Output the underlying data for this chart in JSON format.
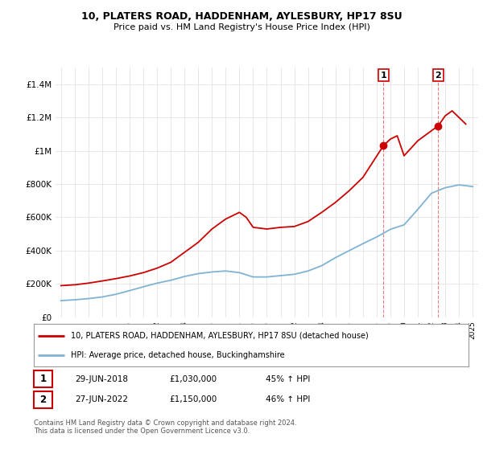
{
  "title1": "10, PLATERS ROAD, HADDENHAM, AYLESBURY, HP17 8SU",
  "title2": "Price paid vs. HM Land Registry's House Price Index (HPI)",
  "ylim": [
    0,
    1500000
  ],
  "yticks": [
    0,
    200000,
    400000,
    600000,
    800000,
    1000000,
    1200000,
    1400000
  ],
  "red_line_color": "#cc0000",
  "blue_line_color": "#7fb3d3",
  "marker1_year": 2018.49,
  "marker1_value": 1030000,
  "marker2_year": 2022.49,
  "marker2_value": 1150000,
  "legend_label1": "10, PLATERS ROAD, HADDENHAM, AYLESBURY, HP17 8SU (detached house)",
  "legend_label2": "HPI: Average price, detached house, Buckinghamshire",
  "table_row1": [
    "1",
    "29-JUN-2018",
    "£1,030,000",
    "45% ↑ HPI"
  ],
  "table_row2": [
    "2",
    "27-JUN-2022",
    "£1,150,000",
    "46% ↑ HPI"
  ],
  "footer": "Contains HM Land Registry data © Crown copyright and database right 2024.\nThis data is licensed under the Open Government Licence v3.0.",
  "red_x": [
    1995,
    1996,
    1997,
    1998,
    1999,
    2000,
    2001,
    2002,
    2003,
    2004,
    2005,
    2006,
    2007,
    2008,
    2008.5,
    2009,
    2010,
    2011,
    2012,
    2013,
    2014,
    2015,
    2016,
    2017,
    2018.49,
    2019,
    2019.5,
    2020,
    2021,
    2022.49,
    2023,
    2023.5,
    2024,
    2024.5
  ],
  "red_y": [
    190000,
    195000,
    205000,
    218000,
    232000,
    248000,
    268000,
    295000,
    330000,
    390000,
    450000,
    530000,
    590000,
    630000,
    600000,
    540000,
    530000,
    540000,
    545000,
    575000,
    630000,
    690000,
    760000,
    840000,
    1030000,
    1070000,
    1090000,
    970000,
    1060000,
    1150000,
    1210000,
    1240000,
    1200000,
    1160000
  ],
  "blue_x": [
    1995,
    1996,
    1997,
    1998,
    1999,
    2000,
    2001,
    2002,
    2003,
    2004,
    2005,
    2006,
    2007,
    2008,
    2009,
    2010,
    2011,
    2012,
    2013,
    2014,
    2015,
    2016,
    2017,
    2018,
    2019,
    2020,
    2021,
    2022,
    2023,
    2024,
    2025
  ],
  "blue_y": [
    100000,
    105000,
    112000,
    122000,
    138000,
    160000,
    183000,
    205000,
    222000,
    245000,
    262000,
    272000,
    278000,
    268000,
    242000,
    242000,
    250000,
    258000,
    278000,
    310000,
    358000,
    400000,
    442000,
    482000,
    528000,
    555000,
    648000,
    745000,
    778000,
    795000,
    785000
  ]
}
